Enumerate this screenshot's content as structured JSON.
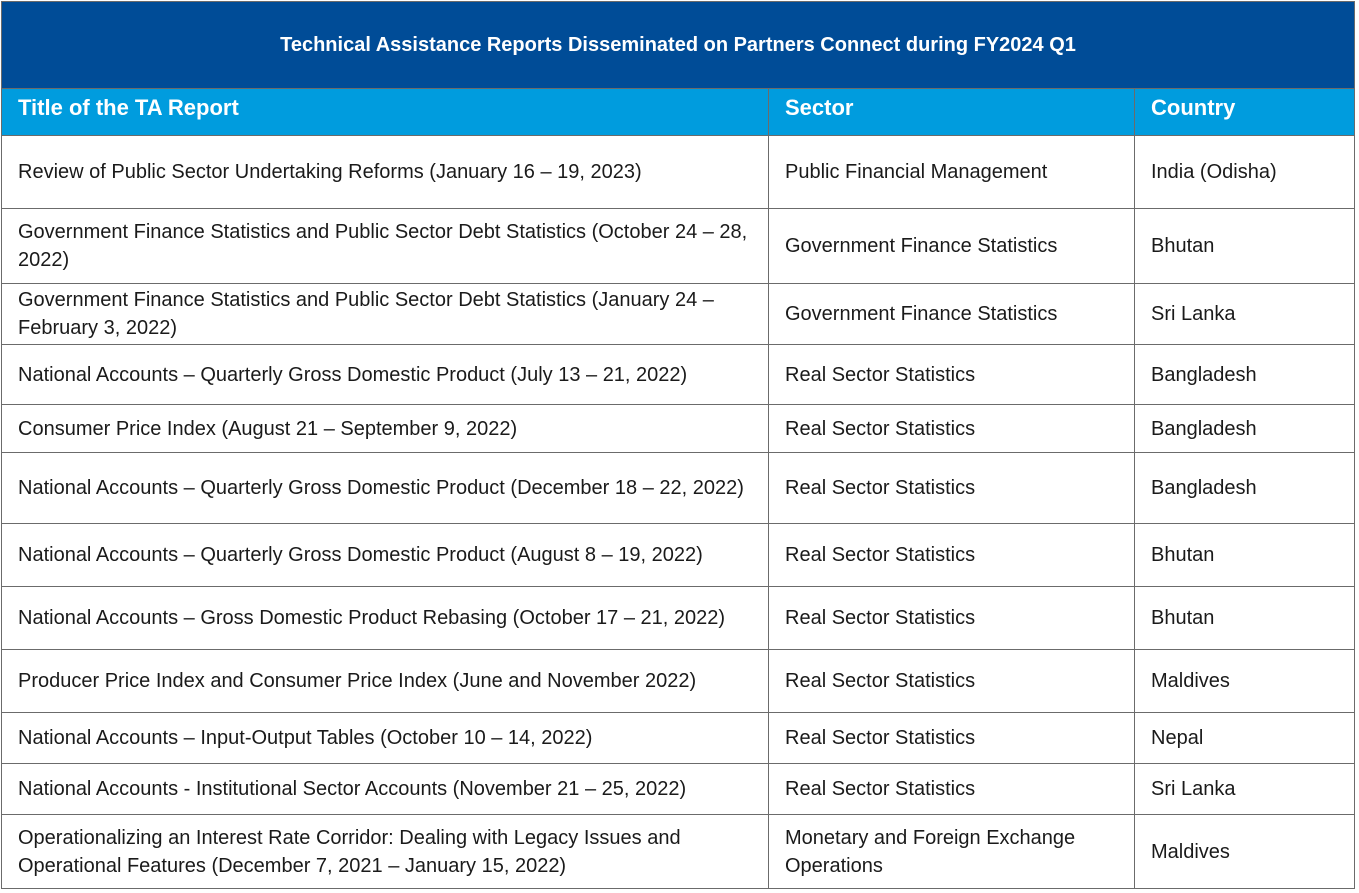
{
  "table": {
    "title": "Technical Assistance Reports Disseminated on Partners Connect during FY2024 Q1",
    "headers": [
      "Title of the TA Report",
      "Sector",
      "Country"
    ],
    "rows": [
      [
        "Review of Public Sector Undertaking Reforms (January 16 – 19, 2023)",
        "Public Financial Management",
        "India (Odisha)"
      ],
      [
        "Government Finance Statistics and Public Sector Debt Statistics (October 24 – 28, 2022)",
        "Government Finance Statistics",
        "Bhutan"
      ],
      [
        "Government Finance Statistics and Public Sector Debt Statistics (January 24 – February 3, 2022)",
        "Government Finance Statistics",
        "Sri Lanka"
      ],
      [
        "National Accounts – Quarterly Gross Domestic Product (July 13 – 21, 2022)",
        "Real Sector Statistics",
        "Bangladesh"
      ],
      [
        "Consumer Price Index (August 21 – September 9, 2022)",
        "Real Sector Statistics",
        "Bangladesh"
      ],
      [
        "National Accounts – Quarterly Gross Domestic Product (December 18 – 22, 2022)",
        "Real Sector Statistics",
        "Bangladesh"
      ],
      [
        "National Accounts – Quarterly Gross Domestic Product (August 8 – 19, 2022)",
        "Real Sector Statistics",
        "Bhutan"
      ],
      [
        "National Accounts – Gross Domestic Product Rebasing (October 17 – 21, 2022)",
        "Real Sector Statistics",
        "Bhutan"
      ],
      [
        "Producer Price Index and Consumer Price Index (June and November 2022)",
        "Real Sector Statistics",
        "Maldives"
      ],
      [
        "National Accounts – Input-Output Tables (October 10 – 14, 2022)",
        "Real Sector Statistics",
        "Nepal"
      ],
      [
        "National Accounts - Institutional Sector Accounts (November 21 – 25, 2022)",
        "Real Sector Statistics",
        "Sri Lanka"
      ],
      [
        "Operationalizing an Interest Rate Corridor: Dealing with Legacy Issues and Operational Features (December 7, 2021 – January 15, 2022)",
        "Monetary and Foreign Exchange Operations",
        "Maldives"
      ]
    ]
  },
  "colors": {
    "title_bg": "#004C97",
    "header_bg": "#009CDE",
    "header_text": "#ffffff",
    "border": "#6b6b6b"
  }
}
